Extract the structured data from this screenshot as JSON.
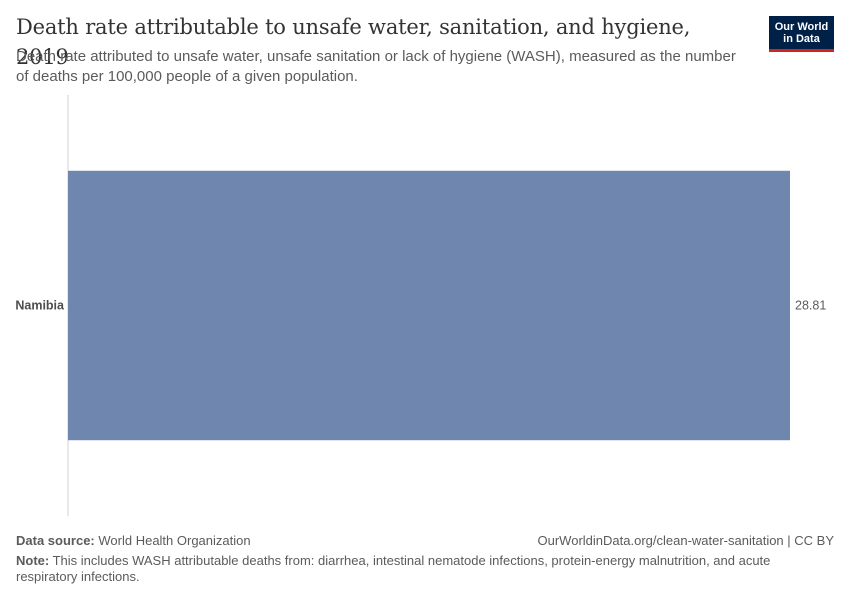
{
  "header": {
    "title": "Death rate attributable to unsafe water, sanitation, and hygiene, 2019",
    "subtitle": "Death rate attributed to unsafe water, unsafe sanitation or lack of hygiene (WASH), measured as the number of deaths per 100,000 people of a given population.",
    "logo_line1": "Our World",
    "logo_line2": "in Data"
  },
  "chart_data": {
    "type": "bar",
    "orientation": "horizontal",
    "title": "Death rate attributable to unsafe water, sanitation, and hygiene, 2019",
    "categories": [
      "Namibia"
    ],
    "values": [
      28.81
    ],
    "value_labels": [
      "28.81"
    ],
    "xlabel": "",
    "ylabel": "",
    "xlim": [
      0,
      28.81
    ],
    "bar_color": "#6f87ae",
    "axis_color": "#d0d0d0"
  },
  "footer": {
    "source_label": "Data source:",
    "source_text": "World Health Organization",
    "url_text": "OurWorldinData.org/clean-water-sanitation | CC BY",
    "note_label": "Note:",
    "note_text": "This includes WASH attributable deaths from: diarrhea, intestinal nematode infections, protein-energy malnutrition, and acute respiratory infections."
  }
}
